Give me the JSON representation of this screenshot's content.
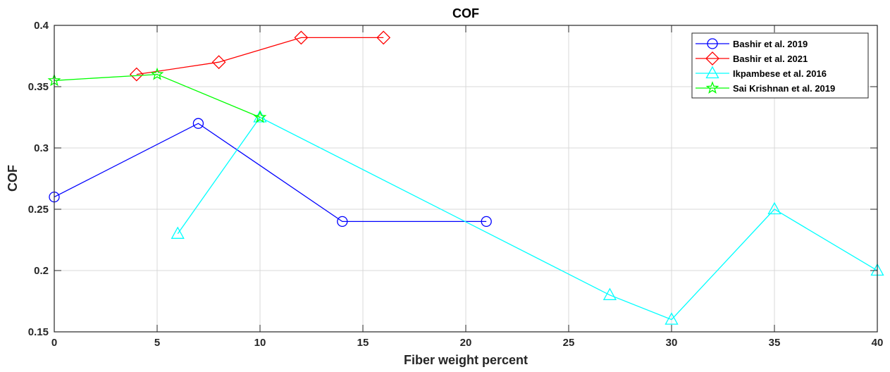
{
  "chart_data": {
    "type": "line",
    "title": "COF",
    "xlabel": "Fiber weight percent",
    "ylabel": "COF",
    "xlim": [
      0,
      40
    ],
    "ylim": [
      0.15,
      0.4
    ],
    "x_ticks": [
      "0",
      "5",
      "10",
      "15",
      "20",
      "25",
      "30",
      "35",
      "40"
    ],
    "y_ticks": [
      "0.15",
      "0.2",
      "0.25",
      "0.3",
      "0.35",
      "0.4"
    ],
    "grid": true,
    "legend_position": "top-right",
    "series": [
      {
        "name": "Bashir et al. 2019",
        "color": "#0000ff",
        "marker": "circle",
        "x": [
          0,
          7,
          14,
          21
        ],
        "y": [
          0.26,
          0.32,
          0.24,
          0.24
        ]
      },
      {
        "name": "Bashir et al. 2021",
        "color": "#ff0000",
        "marker": "diamond",
        "x": [
          4,
          8,
          12,
          16
        ],
        "y": [
          0.36,
          0.37,
          0.39,
          0.39
        ]
      },
      {
        "name": "Ikpambese et al. 2016",
        "color": "#00ffff",
        "marker": "triangle",
        "x": [
          6,
          10,
          27,
          30,
          35,
          40
        ],
        "y": [
          0.23,
          0.325,
          0.18,
          0.16,
          0.25,
          0.2
        ]
      },
      {
        "name": "Sai Krishnan et al. 2019",
        "color": "#00ff00",
        "marker": "star",
        "x": [
          0,
          5,
          10
        ],
        "y": [
          0.355,
          0.36,
          0.325
        ]
      }
    ]
  }
}
